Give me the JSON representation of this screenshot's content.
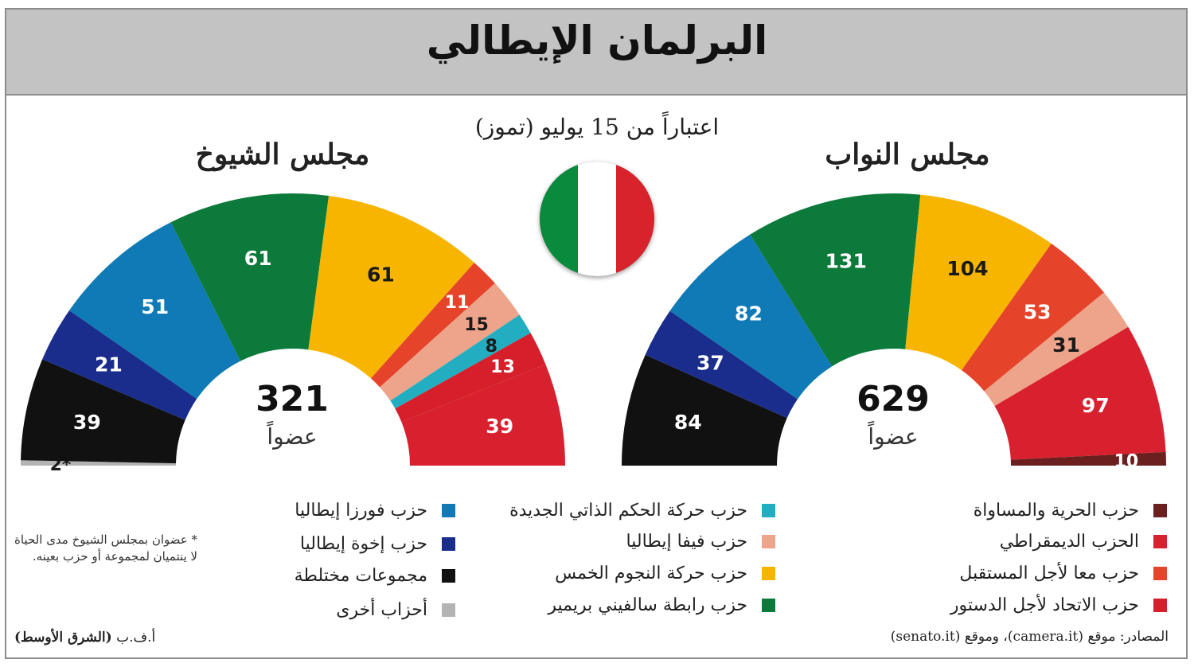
{
  "title": "البرلمان الإيطالي",
  "subtitle": "اعتباراً من 15 يوليو (تموز)",
  "colors": {
    "freedom_equality": "#6b1f1f",
    "democratic": "#d9202f",
    "together_future": "#e5442b",
    "union_constitution": "#d61f2b",
    "autonomy": "#22aec0",
    "italia_viva": "#eda48a",
    "five_star": "#f7b500",
    "lega": "#0c7a3a",
    "forza_italia": "#0f7ab6",
    "fratelli": "#1a2d8c",
    "mixed": "#111111",
    "other": "#b3b3b3"
  },
  "chart_data": [
    {
      "type": "pie",
      "title": "مجلس النواب",
      "total": "629",
      "total_unit": "عضواً",
      "slices": [
        {
          "label": "مجموعات مختلطة",
          "value": 84,
          "color": "#111111"
        },
        {
          "label": "حزب إخوة إيطاليا",
          "value": 37,
          "color": "#1a2d8c"
        },
        {
          "label": "حزب فورزا إيطاليا",
          "value": 82,
          "color": "#0f7ab6"
        },
        {
          "label": "حزب رابطة سالفيني بريمير",
          "value": 131,
          "color": "#0c7a3a"
        },
        {
          "label": "حزب حركة النجوم الخمس",
          "value": 104,
          "color": "#f7b500"
        },
        {
          "label": "حزب معا لأجل المستقبل",
          "value": 53,
          "color": "#e5442b"
        },
        {
          "label": "حزب فيفا إيطاليا",
          "value": 31,
          "color": "#eda48a"
        },
        {
          "label": "الحزب الديمقراطي",
          "value": 97,
          "color": "#d9202f"
        },
        {
          "label": "حزب الحرية والمساواة",
          "value": 10,
          "color": "#6b1f1f"
        }
      ]
    },
    {
      "type": "pie",
      "title": "مجلس الشيوخ",
      "total": "321",
      "total_unit": "عضواً",
      "slices": [
        {
          "label": "أحزاب أخرى",
          "value": 2,
          "color": "#b3b3b3",
          "display": "2*"
        },
        {
          "label": "مجموعات مختلطة",
          "value": 39,
          "color": "#111111"
        },
        {
          "label": "حزب إخوة إيطاليا",
          "value": 21,
          "color": "#1a2d8c"
        },
        {
          "label": "حزب فورزا إيطاليا",
          "value": 51,
          "color": "#0f7ab6"
        },
        {
          "label": "حزب رابطة سالفيني بريمير",
          "value": 61,
          "color": "#0c7a3a"
        },
        {
          "label": "حزب حركة النجوم الخمس",
          "value": 61,
          "color": "#f7b500"
        },
        {
          "label": "حزب معا لأجل المستقبل",
          "value": 11,
          "color": "#e5442b"
        },
        {
          "label": "حزب فيفا إيطاليا",
          "value": 15,
          "color": "#eda48a"
        },
        {
          "label": "حزب حركة الحكم الذاتي الجديدة",
          "value": 8,
          "color": "#22aec0"
        },
        {
          "label": "حزب الاتحاد لأجل الدستور",
          "value": 13,
          "color": "#d61f2b"
        },
        {
          "label": "الحزب الديمقراطي",
          "value": 39,
          "color": "#d9202f"
        }
      ]
    }
  ],
  "legend": {
    "col_right": [
      {
        "label": "حزب الحرية والمساواة",
        "color": "#6b1f1f"
      },
      {
        "label": "الحزب الديمقراطي",
        "color": "#d9202f"
      },
      {
        "label": "حزب معا لأجل المستقبل",
        "color": "#e5442b"
      },
      {
        "label": "حزب الاتحاد لأجل الدستور",
        "color": "#d61f2b"
      }
    ],
    "col_middle": [
      {
        "label": "حزب حركة الحكم الذاتي الجديدة",
        "color": "#22aec0"
      },
      {
        "label": "حزب فيفا إيطاليا",
        "color": "#eda48a"
      },
      {
        "label": "حزب حركة النجوم الخمس",
        "color": "#f7b500"
      },
      {
        "label": "حزب رابطة سالفيني بريمير",
        "color": "#0c7a3a"
      }
    ],
    "col_left": [
      {
        "label": "حزب فورزا إيطاليا",
        "color": "#0f7ab6"
      },
      {
        "label": "حزب إخوة إيطاليا",
        "color": "#1a2d8c"
      },
      {
        "label": "مجموعات مختلطة",
        "color": "#111111"
      },
      {
        "label": "أحزاب أخرى",
        "color": "#b3b3b3"
      }
    ]
  },
  "note": "* عضوان بمجلس الشيوخ مدى الحياة لا ينتميان لمجموعة أو حزب بعينه.",
  "credit_prefix": "أ.ف.ب",
  "credit_name": "(الشرق الأوسط)",
  "source": "المصادر: موقع (camera.it)، وموقع (senato.it)"
}
